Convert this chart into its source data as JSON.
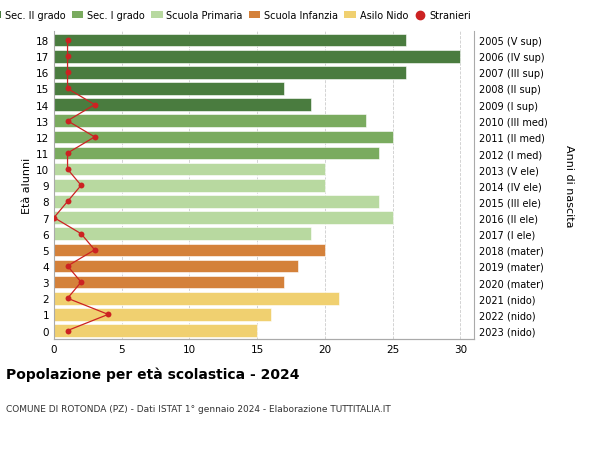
{
  "ages": [
    18,
    17,
    16,
    15,
    14,
    13,
    12,
    11,
    10,
    9,
    8,
    7,
    6,
    5,
    4,
    3,
    2,
    1,
    0
  ],
  "bar_values": [
    26,
    30,
    26,
    17,
    19,
    23,
    25,
    24,
    20,
    20,
    24,
    25,
    19,
    20,
    18,
    17,
    21,
    16,
    15
  ],
  "stranieri": [
    1,
    1,
    1,
    1,
    3,
    1,
    3,
    1,
    1,
    2,
    1,
    0,
    2,
    3,
    1,
    2,
    1,
    4,
    1
  ],
  "right_labels": [
    "2005 (V sup)",
    "2006 (IV sup)",
    "2007 (III sup)",
    "2008 (II sup)",
    "2009 (I sup)",
    "2010 (III med)",
    "2011 (II med)",
    "2012 (I med)",
    "2013 (V ele)",
    "2014 (IV ele)",
    "2015 (III ele)",
    "2016 (II ele)",
    "2017 (I ele)",
    "2018 (mater)",
    "2019 (mater)",
    "2020 (mater)",
    "2021 (nido)",
    "2022 (nido)",
    "2023 (nido)"
  ],
  "bar_colors": [
    "#4a7c3f",
    "#4a7c3f",
    "#4a7c3f",
    "#4a7c3f",
    "#4a7c3f",
    "#7aab5f",
    "#7aab5f",
    "#7aab5f",
    "#b8d9a0",
    "#b8d9a0",
    "#b8d9a0",
    "#b8d9a0",
    "#b8d9a0",
    "#d4813a",
    "#d4813a",
    "#d4813a",
    "#f0d070",
    "#f0d070",
    "#f0d070"
  ],
  "legend_labels": [
    "Sec. II grado",
    "Sec. I grado",
    "Scuola Primaria",
    "Scuola Infanzia",
    "Asilo Nido",
    "Stranieri"
  ],
  "legend_colors": [
    "#4a7c3f",
    "#7aab5f",
    "#b8d9a0",
    "#d4813a",
    "#f0d070",
    "#cc2222"
  ],
  "title": "Popolazione per età scolastica - 2024",
  "subtitle": "COMUNE DI ROTONDA (PZ) - Dati ISTAT 1° gennaio 2024 - Elaborazione TUTTITALIA.IT",
  "ylabel_left": "Età alunni",
  "ylabel_right": "Anni di nascita",
  "xlim": [
    0,
    31
  ],
  "xticks": [
    0,
    5,
    10,
    15,
    20,
    25,
    30
  ],
  "stranieri_color": "#cc2222",
  "bar_height": 0.78,
  "background_color": "#ffffff",
  "grid_color": "#cccccc"
}
